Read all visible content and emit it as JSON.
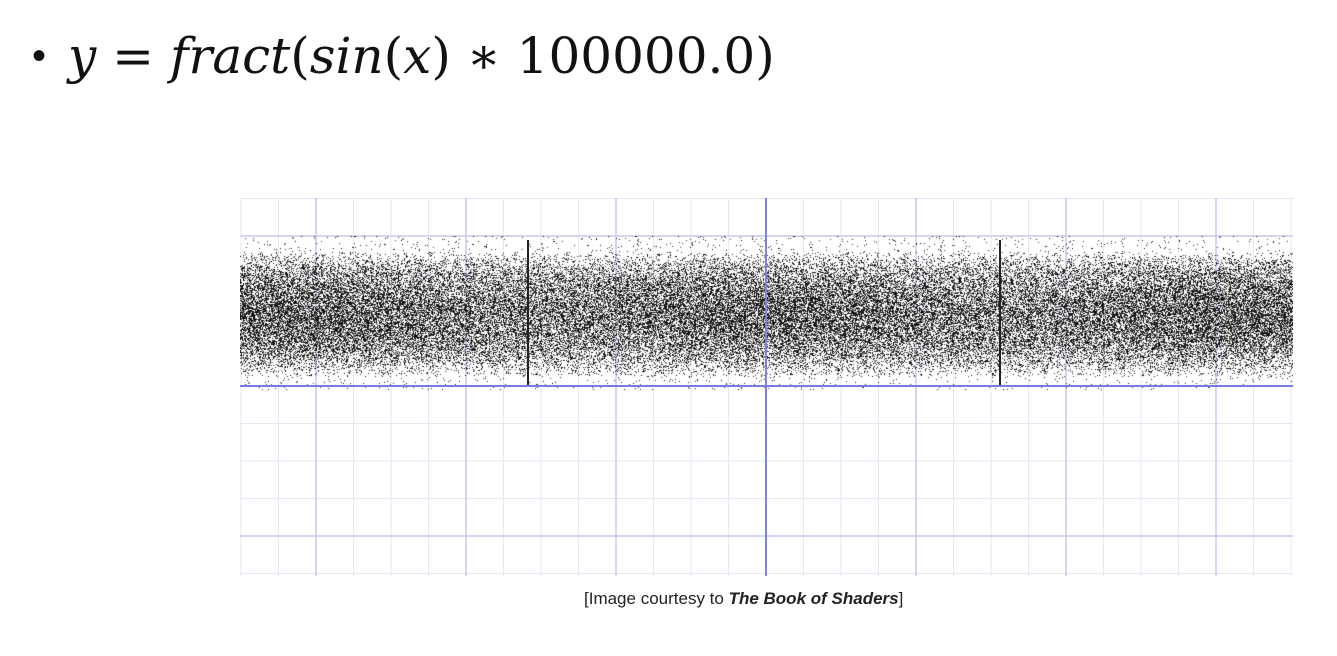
{
  "slide": {
    "bullet": "•",
    "formula": {
      "y": "y",
      "eq": " = ",
      "fn_fract": "fract",
      "open1": "(",
      "fn_sin": "sin",
      "open2": "(",
      "x": "x",
      "close2": ")",
      "mult": " ∗ ",
      "constant": "100000.0",
      "close1": ")"
    },
    "caption": {
      "prefix": "[Image courtesy to ",
      "source": "The Book of Shaders",
      "suffix": "]"
    }
  },
  "plot": {
    "function": "y = fract(sin(x) * 100000.0)",
    "noise_color": "#000000",
    "grid_minor_color": "#e6e6f4",
    "grid_major_color": "#c9c9ee",
    "axis_color": "#8080dd",
    "range_line_color": "#7a7ae0"
  }
}
